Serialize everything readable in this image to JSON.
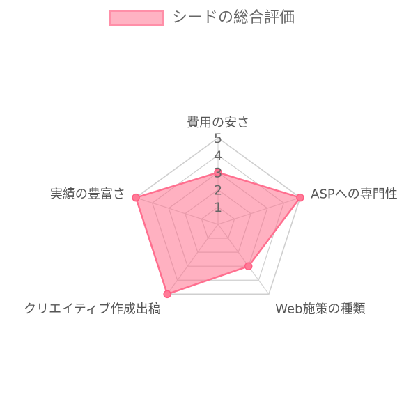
{
  "chart_data": {
    "type": "radar",
    "legend": {
      "position": "top",
      "label": "シードの総合評価",
      "color": "#ff8fa8",
      "fill": "#ffb3c3"
    },
    "categories": [
      "費用の安さ",
      "ASPへの専門性",
      "Web施策の種類",
      "クリエイティブ作成出稿",
      "実績の豊富さ"
    ],
    "series": [
      {
        "name": "シードの総合評価",
        "values": [
          3,
          5,
          3,
          5,
          5
        ]
      }
    ],
    "ticks": [
      "1",
      "2",
      "3",
      "4",
      "5"
    ],
    "rlim": [
      0,
      5
    ],
    "grid": true
  }
}
